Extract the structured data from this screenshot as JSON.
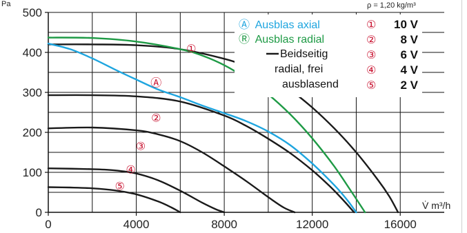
{
  "chart_data": {
    "type": "line",
    "xlim": [
      0,
      18000
    ],
    "ylim": [
      0,
      500
    ],
    "xticks": [
      0,
      4000,
      8000,
      12000,
      16000
    ],
    "yticks": [
      0,
      100,
      200,
      300,
      400,
      500
    ],
    "xtick_labels": [
      "0",
      "4000",
      "8000",
      "12000",
      "16000"
    ],
    "ytick_labels": [
      "0",
      "100",
      "200",
      "300",
      "400",
      "500"
    ],
    "ylabel": "Pa",
    "xlabel_unit": "V̇ m³/h",
    "density_note": "ρ = 1,20 kg/m³",
    "grid": true,
    "legend": {
      "axial_mark": "Ⓐ",
      "axial_label": "Ausblas axial",
      "radial_mark": "Ⓡ",
      "radial_label": "Ausblas radial",
      "both_label_1": "Beidseitig",
      "both_label_2": "radial, frei",
      "both_label_3": "ausblasend"
    },
    "voltages": [
      {
        "mark": "①",
        "label": "10 V"
      },
      {
        "mark": "②",
        "label": "8 V"
      },
      {
        "mark": "③",
        "label": "6 V"
      },
      {
        "mark": "④",
        "label": "4 V"
      },
      {
        "mark": "⑤",
        "label": "2 V"
      }
    ],
    "series": [
      {
        "kind": "black",
        "color": "#1a1a1a",
        "mark": "①",
        "x": [
          0,
          2000,
          4000,
          6000,
          8000,
          9000,
          10000,
          11000,
          12000,
          13000,
          14000,
          15000,
          15500,
          15900
        ],
        "y": [
          420,
          420,
          418,
          408,
          384,
          365,
          340,
          306,
          262,
          210,
          150,
          80,
          40,
          0
        ]
      },
      {
        "kind": "black",
        "color": "#1a1a1a",
        "mark": "②",
        "x": [
          0,
          2000,
          4000,
          6000,
          8000,
          9000,
          10000,
          11000,
          12000,
          12800,
          13500,
          13900
        ],
        "y": [
          293,
          293,
          290,
          277,
          242,
          216,
          184,
          148,
          105,
          65,
          25,
          0
        ]
      },
      {
        "kind": "black",
        "color": "#1a1a1a",
        "mark": "③",
        "x": [
          0,
          2000,
          4000,
          5000,
          6000,
          7000,
          8000,
          9000,
          10000,
          10700,
          11200
        ],
        "y": [
          210,
          212,
          205,
          195,
          178,
          150,
          115,
          78,
          38,
          12,
          0
        ]
      },
      {
        "kind": "black",
        "color": "#1a1a1a",
        "mark": "④",
        "x": [
          0,
          2000,
          3000,
          4000,
          5000,
          6000,
          7000,
          7600,
          8000
        ],
        "y": [
          110,
          108,
          105,
          97,
          80,
          54,
          24,
          8,
          0
        ]
      },
      {
        "kind": "black",
        "color": "#1a1a1a",
        "mark": "⑤",
        "x": [
          0,
          1000,
          2000,
          3000,
          4000,
          5000,
          5600,
          6000
        ],
        "y": [
          63,
          62,
          60,
          55,
          45,
          27,
          12,
          0
        ]
      },
      {
        "kind": "axial",
        "color": "#1ea5df",
        "mark": "Ⓐ",
        "x": [
          0,
          1000,
          2000,
          3000,
          4000,
          5000,
          6000,
          7000,
          8000,
          9000,
          10000,
          11000,
          12000,
          13000,
          13600,
          14000
        ],
        "y": [
          422,
          408,
          385,
          358,
          332,
          307,
          288,
          267,
          248,
          228,
          202,
          168,
          122,
          68,
          30,
          0
        ]
      },
      {
        "kind": "radial",
        "color": "#1e9a45",
        "mark": "Ⓡ",
        "x": [
          0,
          2000,
          4000,
          6000,
          7000,
          8000,
          9000,
          10000,
          11000,
          12000,
          13000,
          13800,
          14400
        ],
        "y": [
          437,
          436,
          427,
          408,
          392,
          368,
          335,
          295,
          245,
          185,
          115,
          50,
          0
        ]
      }
    ],
    "curve_labels": [
      {
        "mark": "①",
        "x": 6500,
        "y": 410,
        "color": "#c8102e"
      },
      {
        "mark": "②",
        "x": 4900,
        "y": 237,
        "color": "#c8102e"
      },
      {
        "mark": "③",
        "x": 4200,
        "y": 166,
        "color": "#c8102e"
      },
      {
        "mark": "④",
        "x": 3750,
        "y": 108,
        "color": "#c8102e"
      },
      {
        "mark": "⑤",
        "x": 3250,
        "y": 66,
        "color": "#c8102e"
      },
      {
        "mark": "Ⓐ",
        "x": 4900,
        "y": 325,
        "color": "#1ea5df"
      },
      {
        "mark": "Ⓡ",
        "x": 9100,
        "y": 342,
        "color": "#1e9a45"
      }
    ]
  }
}
